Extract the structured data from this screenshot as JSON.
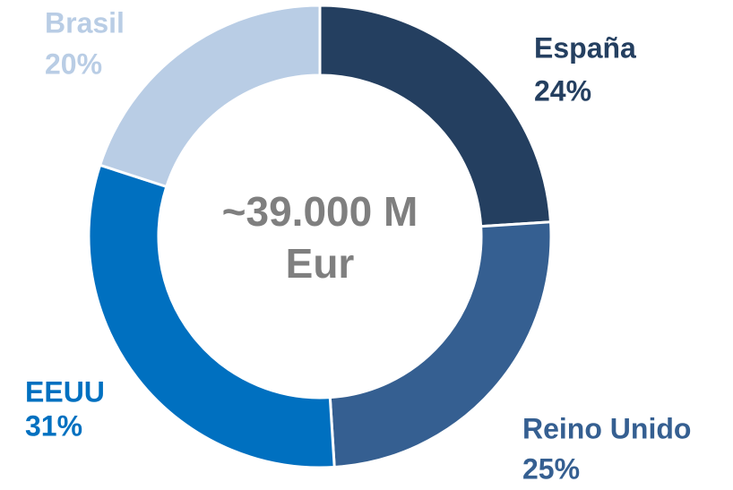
{
  "chart_data": {
    "type": "pie",
    "categories": [
      "España",
      "Reino Unido",
      "EEUU",
      "Brasil"
    ],
    "values": [
      24,
      25,
      31,
      20
    ],
    "value_labels": [
      "24%",
      "25%",
      "31%",
      "20%"
    ],
    "colors": [
      "#243f60",
      "#355f91",
      "#0070c0",
      "#b9cde5"
    ],
    "center_text": [
      "~39.000 M",
      "Eur"
    ]
  }
}
